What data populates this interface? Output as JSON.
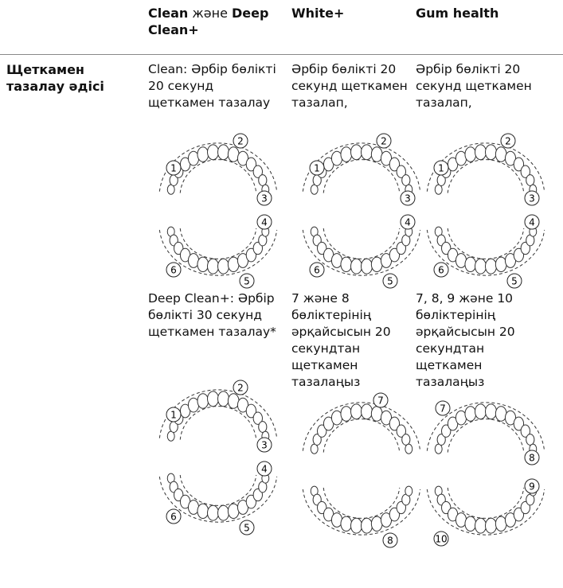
{
  "header": {
    "columns": [
      {
        "parts": [
          "Clean",
          " жəне ",
          "Deep Clean+"
        ]
      },
      {
        "text": "White+"
      },
      {
        "text": "Gum health"
      }
    ]
  },
  "row": {
    "label": "Щеткамен тазалау əдісі",
    "cells": [
      {
        "blocks": [
          {
            "text": "Clean: Әрбір бөлікті 20 секунд щеткамен тазалау",
            "diagrams": [
              [
                "1",
                "2",
                "3"
              ],
              [
                "4",
                "5",
                "6"
              ]
            ]
          },
          {
            "text": "Deep Clean+: Әрбір бөлікті 30 секунд щеткамен тазалау*",
            "diagrams": [
              [
                "1",
                "2",
                "3"
              ],
              [
                "4",
                "5",
                "6"
              ]
            ]
          }
        ]
      },
      {
        "blocks": [
          {
            "text": "Әрбір бөлікті 20 секунд щеткамен тазалап,",
            "diagrams": [
              [
                "1",
                "2",
                "3"
              ],
              [
                "4",
                "5",
                "6"
              ]
            ]
          },
          {
            "text": "7 жəне 8 бөліктерінің əрқайсысын 20 секундтан щеткамен тазалаңыз",
            "diagrams": [
              [
                "7"
              ],
              [
                "8"
              ]
            ]
          }
        ]
      },
      {
        "blocks": [
          {
            "text": "Әрбір бөлікті 20 секунд щеткамен тазалап,",
            "diagrams": [
              [
                "1",
                "2",
                "3"
              ],
              [
                "4",
                "5",
                "6"
              ]
            ]
          },
          {
            "text": "7, 8, 9 жəне 10 бөліктерінің əрқайсысын 20 секундтан щеткамен тазалаңыз",
            "diagrams": [
              [
                "7",
                "8"
              ],
              [
                "9",
                "10"
              ]
            ]
          }
        ]
      }
    ]
  }
}
